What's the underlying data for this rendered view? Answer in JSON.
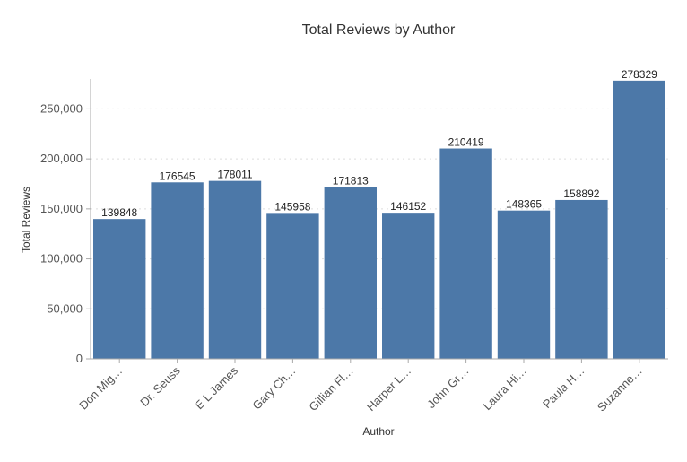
{
  "chart_data": {
    "type": "bar",
    "title": "Total Reviews by Author",
    "xlabel": "Author",
    "ylabel": "Total Reviews",
    "categories": [
      "Don Mig…",
      "Dr. Seuss",
      "E L James",
      "Gary Ch…",
      "Gillian Fl…",
      "Harper L…",
      "John Gr…",
      "Laura Hi…",
      "Paula H…",
      "Suzanne…"
    ],
    "values": [
      139848,
      176545,
      178011,
      145958,
      171813,
      146152,
      210419,
      148365,
      158892,
      278329
    ],
    "value_labels": [
      "139848",
      "176545",
      "178011",
      "145958",
      "171813",
      "146152",
      "210419",
      "148365",
      "158892",
      "278329"
    ],
    "yticks": [
      0,
      50000,
      100000,
      150000,
      200000,
      250000
    ],
    "ytick_labels": [
      "0",
      "50,000",
      "100,000",
      "150,000",
      "200,000",
      "250,000"
    ],
    "ylim": [
      0,
      280000
    ],
    "grid": true,
    "legend": "none",
    "bar_color": "#4c78a8"
  }
}
